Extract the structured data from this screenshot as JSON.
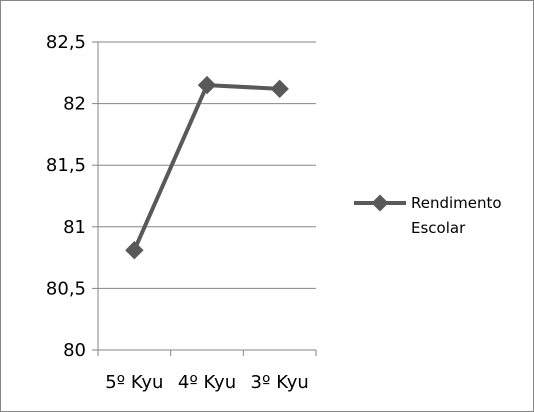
{
  "chart_data": {
    "type": "line",
    "title": "",
    "xlabel": "",
    "ylabel": "",
    "categories": [
      "5º Kyu",
      "4º Kyu",
      "3º Kyu"
    ],
    "series": [
      {
        "name": "Rendimento Escolar",
        "values": [
          80.81,
          82.15,
          82.12
        ]
      }
    ],
    "ylim": [
      80,
      82.5
    ],
    "yticks": [
      "80",
      "80,5",
      "81",
      "81,5",
      "82",
      "82,5"
    ],
    "grid": "horizontal",
    "legend": "right",
    "legend_lines": [
      "Rendimento",
      "Escolar"
    ],
    "colors": {
      "series": "#595959",
      "grid": "#868686",
      "axis": "#868686"
    }
  }
}
